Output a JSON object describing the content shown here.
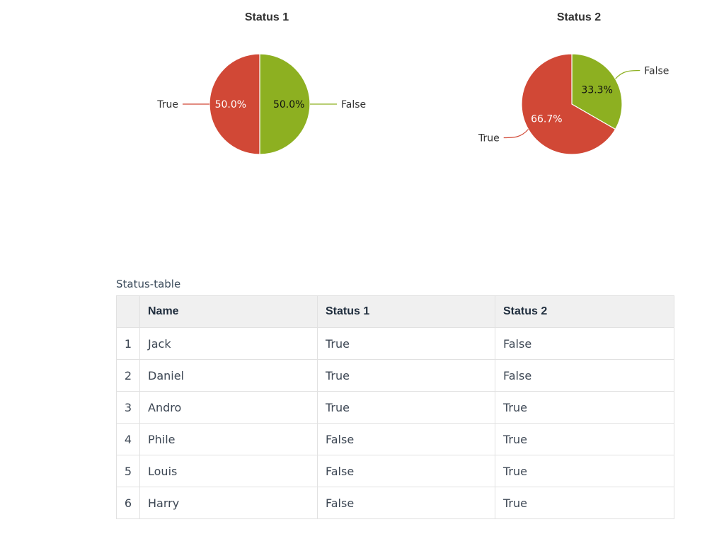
{
  "colors": {
    "true": "#d14836",
    "false": "#8db021"
  },
  "chart_data": [
    {
      "type": "pie",
      "title": "Status 1",
      "slices": [
        {
          "label": "False",
          "value": 3,
          "percent": "50.0%",
          "color": "#8db021"
        },
        {
          "label": "True",
          "value": 3,
          "percent": "50.0%",
          "color": "#d14836"
        }
      ]
    },
    {
      "type": "pie",
      "title": "Status 2",
      "slices": [
        {
          "label": "False",
          "value": 2,
          "percent": "33.3%",
          "color": "#8db021"
        },
        {
          "label": "True",
          "value": 4,
          "percent": "66.7%",
          "color": "#d14836"
        }
      ]
    }
  ],
  "table": {
    "caption": "Status-table",
    "headers": [
      "",
      "Name",
      "Status 1",
      "Status 2"
    ],
    "rows": [
      {
        "index": "1",
        "name": "Jack",
        "status1": "True",
        "status2": "False"
      },
      {
        "index": "2",
        "name": "Daniel",
        "status1": "True",
        "status2": "False"
      },
      {
        "index": "3",
        "name": "Andro",
        "status1": "True",
        "status2": "True"
      },
      {
        "index": "4",
        "name": "Phile",
        "status1": "False",
        "status2": "True"
      },
      {
        "index": "5",
        "name": "Louis",
        "status1": "False",
        "status2": "True"
      },
      {
        "index": "6",
        "name": "Harry",
        "status1": "False",
        "status2": "True"
      }
    ]
  }
}
